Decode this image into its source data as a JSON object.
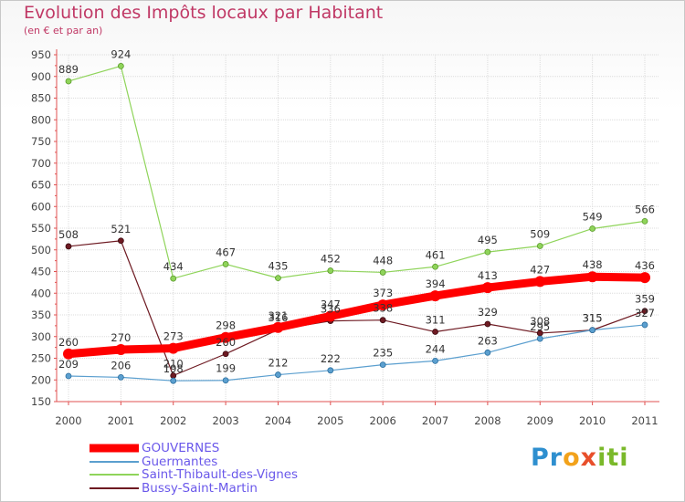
{
  "title": "Evolution des Impôts locaux par Habitant",
  "subtitle": "(en € et par an)",
  "brand": {
    "text": "Proxiti",
    "part1": "Pr",
    "part2": "o",
    "part3": "x",
    "part4": "iti"
  },
  "colors": {
    "title": "#c03865",
    "legend_text": "#6a58ea",
    "GOUVERNES": "#ff0000",
    "Guermantes": "#5b9fcf",
    "Saint-Thibault-des-Vignes": "#8fd45a",
    "Bussy-Saint-Martin": "#6e1a22"
  },
  "chart_data": {
    "type": "line",
    "title": "Evolution des Impôts locaux par Habitant",
    "subtitle": "(en € et par an)",
    "xlabel": "",
    "ylabel": "",
    "ylim": [
      150,
      950
    ],
    "y_ticks": [
      150,
      200,
      250,
      300,
      350,
      400,
      450,
      500,
      550,
      600,
      650,
      700,
      750,
      800,
      850,
      900,
      950
    ],
    "x": [
      "2000",
      "2001",
      "2002",
      "2003",
      "2004",
      "2005",
      "2006",
      "2007",
      "2008",
      "2009",
      "2010",
      "2011"
    ],
    "grid": true,
    "legend_position": "bottom-left",
    "series": [
      {
        "name": "GOUVERNES",
        "values": [
          260,
          270,
          273,
          298,
          321,
          347,
          373,
          394,
          413,
          427,
          438,
          436
        ]
      },
      {
        "name": "Guermantes",
        "values": [
          209,
          206,
          198,
          199,
          212,
          222,
          235,
          244,
          263,
          295,
          315,
          327
        ]
      },
      {
        "name": "Saint-Thibault-des-Vignes",
        "values": [
          889,
          924,
          434,
          467,
          435,
          452,
          448,
          461,
          495,
          509,
          549,
          566
        ]
      },
      {
        "name": "Bussy-Saint-Martin",
        "values": [
          508,
          521,
          210,
          260,
          316,
          336,
          338,
          311,
          329,
          308,
          315,
          359
        ]
      }
    ]
  }
}
